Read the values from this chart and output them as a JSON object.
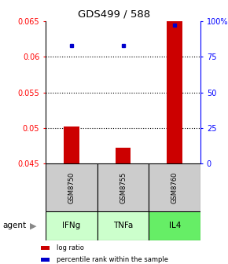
{
  "title": "GDS499 / 588",
  "categories": [
    "GSM8750",
    "GSM8755",
    "GSM8760"
  ],
  "agents": [
    "IFNg",
    "TNFa",
    "IL4"
  ],
  "log_ratio_values": [
    0.0502,
    0.0472,
    0.065
  ],
  "log_ratio_baseline": 0.045,
  "percentile_values": [
    83,
    83,
    97
  ],
  "ylim_left": [
    0.045,
    0.065
  ],
  "ylim_right": [
    0,
    100
  ],
  "yticks_left": [
    0.045,
    0.05,
    0.055,
    0.06,
    0.065
  ],
  "ytick_labels_left": [
    "0.045",
    "0.05",
    "0.055",
    "0.06",
    "0.065"
  ],
  "yticks_right": [
    0,
    25,
    50,
    75,
    100
  ],
  "ytick_labels_right": [
    "0",
    "25",
    "50",
    "75",
    "100%"
  ],
  "grid_yticks": [
    0.05,
    0.055,
    0.06
  ],
  "bar_color": "#cc0000",
  "dot_color": "#0000cc",
  "agent_colors": [
    "#ccffcc",
    "#ccffcc",
    "#66ee66"
  ],
  "sample_box_color": "#cccccc",
  "legend_items": [
    "log ratio",
    "percentile rank within the sample"
  ],
  "legend_colors": [
    "#cc0000",
    "#0000cc"
  ],
  "bar_width": 0.3
}
